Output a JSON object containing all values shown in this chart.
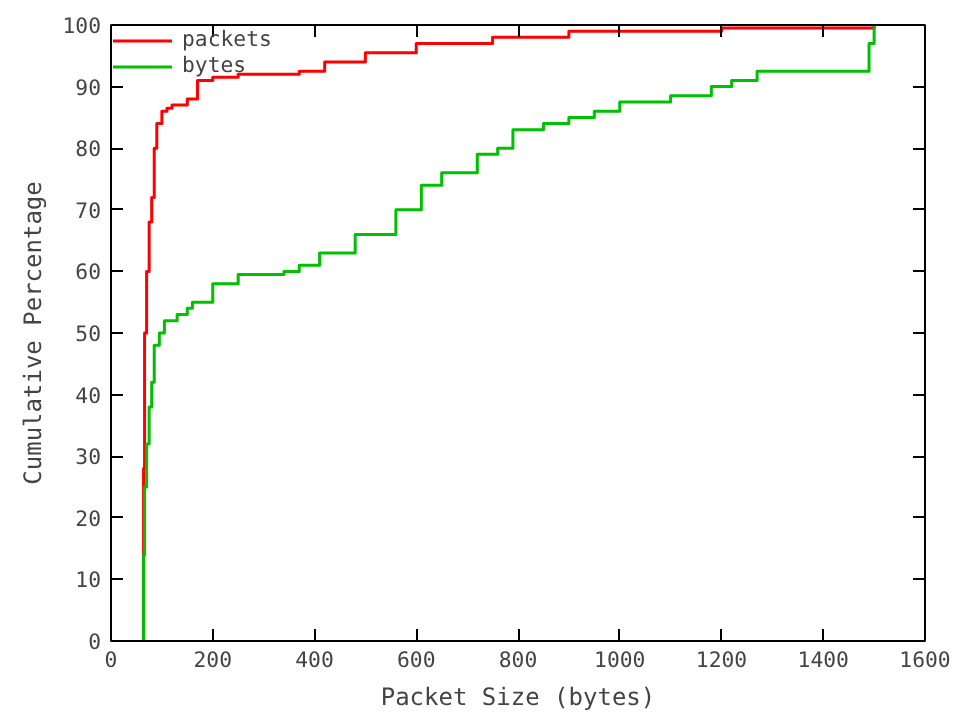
{
  "chart_data": {
    "type": "step",
    "xlabel": "Packet Size (bytes)",
    "ylabel": "Cumulative Percentage",
    "xlim": [
      0,
      1600
    ],
    "ylim": [
      0,
      100
    ],
    "xticks": [
      0,
      200,
      400,
      600,
      800,
      1000,
      1200,
      1400,
      1600
    ],
    "yticks": [
      0,
      10,
      20,
      30,
      40,
      50,
      60,
      70,
      80,
      90,
      100
    ],
    "grid": false,
    "legend": "top left",
    "line_style": "solid",
    "marker": "none",
    "series": [
      {
        "name": "packets",
        "color": "#ff0000",
        "x": [
          64,
          64,
          66,
          70,
          75,
          80,
          85,
          90,
          100,
          110,
          120,
          150,
          170,
          200,
          250,
          370,
          420,
          500,
          600,
          750,
          900,
          1200,
          1500
        ],
        "values": [
          0,
          28,
          50,
          60,
          68,
          72,
          80,
          84,
          86,
          86.5,
          87,
          88,
          91,
          91.5,
          92,
          92.5,
          94,
          95.5,
          97,
          98,
          99,
          99.5,
          100
        ]
      },
      {
        "name": "bytes",
        "color": "#00c000",
        "x": [
          64,
          64,
          66,
          70,
          75,
          80,
          85,
          95,
          105,
          130,
          150,
          160,
          200,
          250,
          340,
          370,
          410,
          480,
          560,
          610,
          650,
          720,
          760,
          790,
          850,
          900,
          950,
          1000,
          1100,
          1180,
          1220,
          1270,
          1480,
          1490,
          1500
        ],
        "values": [
          0,
          14,
          25,
          32,
          38,
          42,
          48,
          50,
          52,
          53,
          54,
          55,
          58,
          59.5,
          60,
          61,
          63,
          66,
          70,
          74,
          76,
          79,
          80,
          83,
          84,
          85,
          86,
          87.5,
          88.5,
          90,
          91,
          92.5,
          92.5,
          97,
          100
        ]
      }
    ]
  }
}
